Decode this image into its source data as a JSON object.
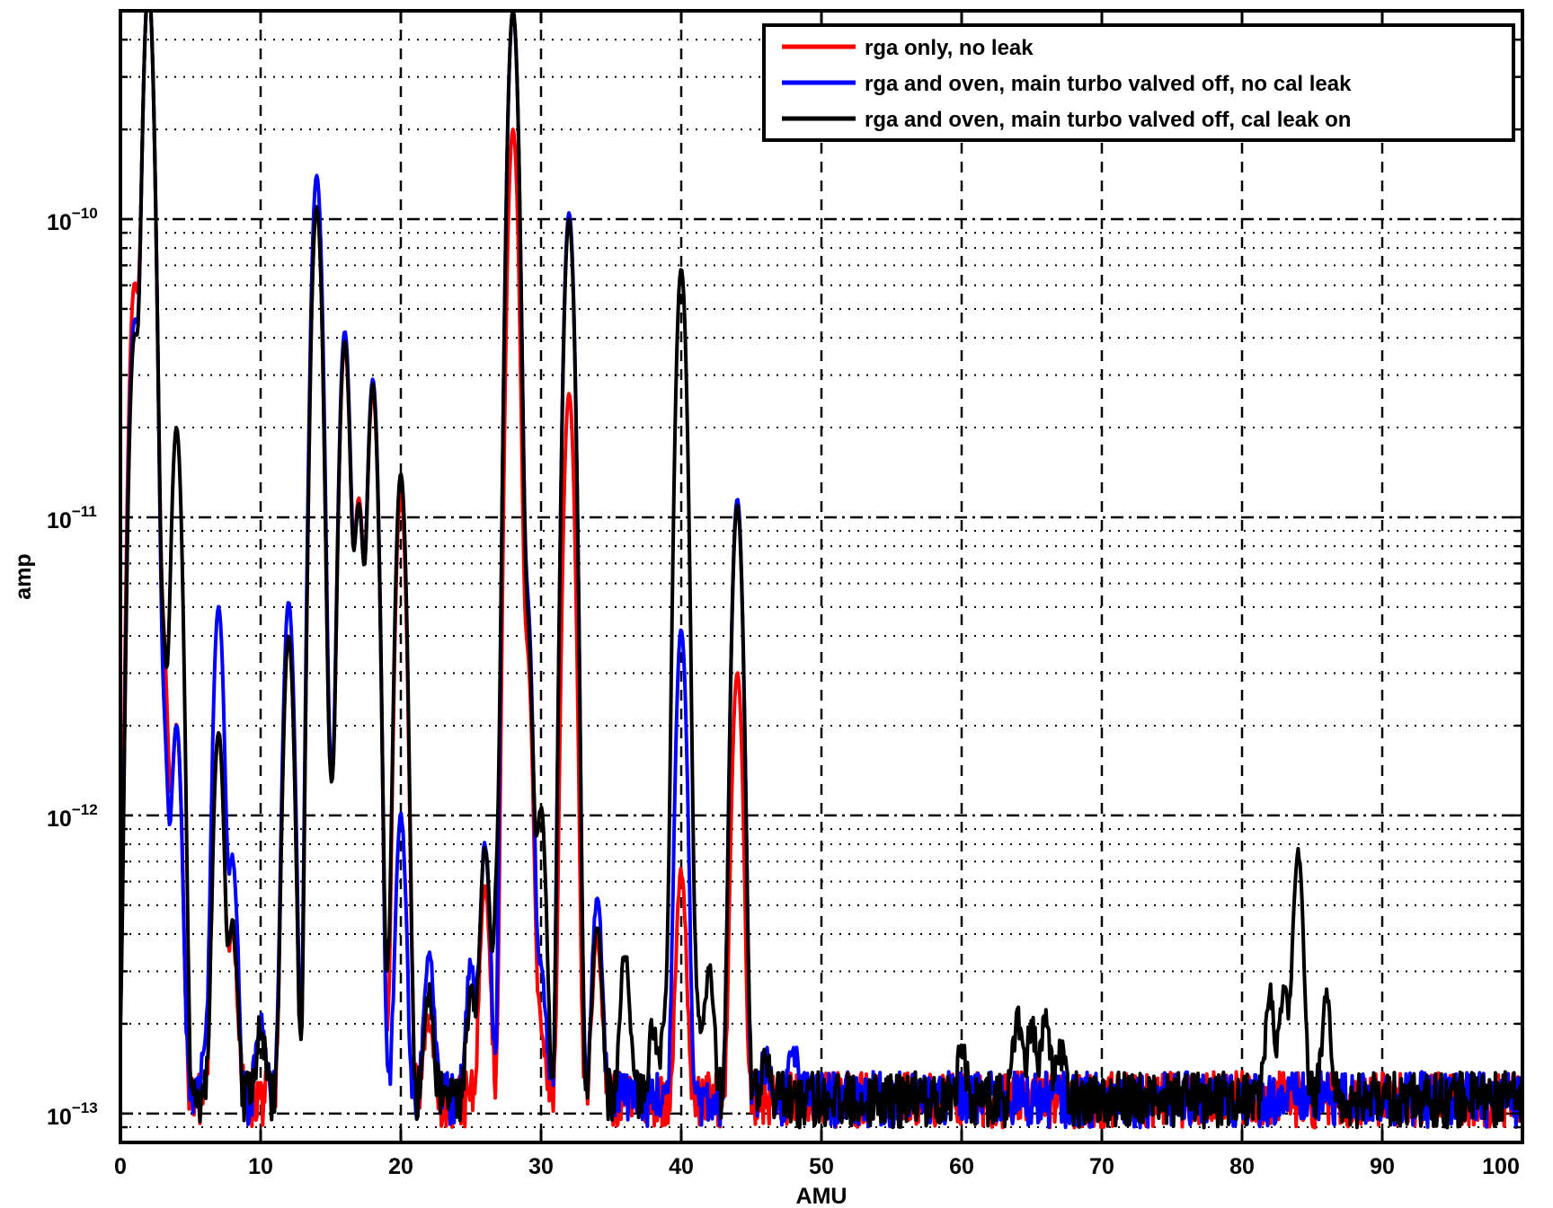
{
  "chart_data": {
    "type": "line",
    "title": "",
    "xlabel": "AMU",
    "ylabel": "amp",
    "xlim": [
      0,
      100
    ],
    "ylim": [
      8e-14,
      5e-10
    ],
    "yscale": "log",
    "grid": true,
    "legend_position": "top-right",
    "x_ticks": [
      0,
      10,
      20,
      30,
      40,
      50,
      60,
      70,
      80,
      90,
      100
    ],
    "x_tick_labels": [
      "0",
      "10",
      "20",
      "30",
      "40",
      "50",
      "60",
      "70",
      "80",
      "90",
      "100"
    ],
    "y_ticks": [
      1e-13,
      1e-12,
      1e-11,
      1e-10
    ],
    "y_tick_labels": [
      {
        "mantissa": "10",
        "exponent": "−13"
      },
      {
        "mantissa": "10",
        "exponent": "−12"
      },
      {
        "mantissa": "10",
        "exponent": "−11"
      },
      {
        "mantissa": "10",
        "exponent": "−10"
      }
    ],
    "noise_floor": 1.15e-13,
    "series": [
      {
        "name": "rga only, no leak",
        "color": "#ff0000",
        "peaks": [
          [
            1,
            6e-11
          ],
          [
            2,
            6e-10
          ],
          [
            3,
            4.2e-12
          ],
          [
            4,
            2e-12
          ],
          [
            7,
            1.9e-12
          ],
          [
            8,
            4e-13
          ],
          [
            12,
            4e-12
          ],
          [
            14,
            1.1e-10
          ],
          [
            15,
            1.2e-12
          ],
          [
            16,
            3.8e-11
          ],
          [
            17,
            1.15e-11
          ],
          [
            18,
            2.7e-11
          ],
          [
            20,
            1.2e-11
          ],
          [
            22,
            2.2e-13
          ],
          [
            26,
            6e-13
          ],
          [
            28,
            2e-10
          ],
          [
            29,
            3.5e-12
          ],
          [
            30,
            2e-13
          ],
          [
            32,
            2.6e-11
          ],
          [
            34,
            4e-13
          ],
          [
            40,
            6.5e-13
          ],
          [
            44,
            3e-12
          ]
        ]
      },
      {
        "name": "rga and oven, main turbo valved off, no cal leak",
        "color": "#0000ff",
        "peaks": [
          [
            1,
            4.5e-11
          ],
          [
            2,
            6e-10
          ],
          [
            3,
            2.3e-12
          ],
          [
            4,
            2e-12
          ],
          [
            6,
            1.6e-13
          ],
          [
            7,
            5e-12
          ],
          [
            8,
            7.2e-13
          ],
          [
            10,
            2.1e-13
          ],
          [
            12,
            5.2e-12
          ],
          [
            14,
            1.4e-10
          ],
          [
            15,
            1.2e-12
          ],
          [
            16,
            4.2e-11
          ],
          [
            17,
            1.1e-11
          ],
          [
            18,
            2.9e-11
          ],
          [
            20,
            1e-12
          ],
          [
            22,
            3.5e-13
          ],
          [
            25,
            3.2e-13
          ],
          [
            26,
            8e-13
          ],
          [
            28,
            5e-10
          ],
          [
            29,
            5.2e-12
          ],
          [
            30,
            3e-13
          ],
          [
            32,
            1.05e-10
          ],
          [
            34,
            5.3e-13
          ],
          [
            40,
            4.2e-12
          ],
          [
            44,
            1.15e-11
          ],
          [
            46,
            1.5e-13
          ],
          [
            48,
            1.6e-13
          ]
        ]
      },
      {
        "name": "rga and oven, main turbo valved off, cal leak on",
        "color": "#000000",
        "peaks": [
          [
            1,
            4e-11
          ],
          [
            2,
            6e-10
          ],
          [
            3,
            3.9e-12
          ],
          [
            4,
            2e-11
          ],
          [
            7,
            1.9e-12
          ],
          [
            8,
            4.3e-13
          ],
          [
            10,
            2e-13
          ],
          [
            12,
            4e-12
          ],
          [
            14,
            1.1e-10
          ],
          [
            15,
            1.1e-12
          ],
          [
            16,
            3.9e-11
          ],
          [
            17,
            1.1e-11
          ],
          [
            18,
            2.8e-11
          ],
          [
            19,
            2.4e-13
          ],
          [
            20,
            1.4e-11
          ],
          [
            22,
            2.6e-13
          ],
          [
            25,
            2.5e-13
          ],
          [
            26,
            7.8e-13
          ],
          [
            27,
            7e-13
          ],
          [
            28,
            5e-10
          ],
          [
            29,
            4.5e-12
          ],
          [
            30,
            1.05e-12
          ],
          [
            32,
            1e-10
          ],
          [
            34,
            4.3e-13
          ],
          [
            36,
            3.5e-13
          ],
          [
            38,
            2e-13
          ],
          [
            39,
            2.3e-13
          ],
          [
            40,
            6.8e-11
          ],
          [
            41,
            2.5e-13
          ],
          [
            42,
            3e-13
          ],
          [
            44,
            1.1e-11
          ],
          [
            46,
            1.6e-13
          ],
          [
            60,
            1.6e-13
          ],
          [
            64,
            2.1e-13
          ],
          [
            65,
            2e-13
          ],
          [
            66,
            2.1e-13
          ],
          [
            67,
            1.7e-13
          ],
          [
            82,
            2.5e-13
          ],
          [
            83,
            2.6e-13
          ],
          [
            84,
            7.5e-13
          ],
          [
            86,
            2.4e-13
          ]
        ]
      }
    ]
  }
}
